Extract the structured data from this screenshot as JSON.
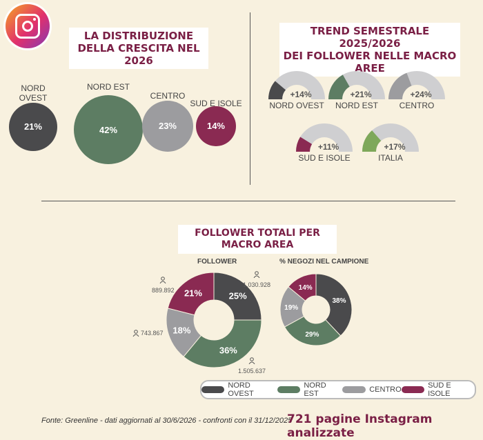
{
  "logo": {
    "icon": "instagram-icon"
  },
  "section1": {
    "title_line1": "LA DISTRIBUZIONE",
    "title_line2": "DELLA CRESCITA NEL 2026"
  },
  "section2": {
    "title_line1": "TREND SEMESTRALE 2025/2026",
    "title_line2": "DEI FOLLOWER NELLE MACRO AREE"
  },
  "section3": {
    "title": "FOLLOWER TOTALI PER MACRO AREA",
    "follower_label": "FOLLOWER",
    "negozi_label": "% NEGOZI NEL CAMPIONE",
    "counts": {
      "nord_ovest": "1.030.928",
      "nord_est": "1.505.637",
      "centro": "743.867",
      "sud_isole": "889.892"
    }
  },
  "legend": [
    {
      "label": "NORD OVEST",
      "color": "#4a4a4c"
    },
    {
      "label": "NORD EST",
      "color": "#5d7d63"
    },
    {
      "label": "CENTRO",
      "color": "#9c9c9f"
    },
    {
      "label": "SUD E ISOLE",
      "color": "#8a2a52"
    }
  ],
  "footer": {
    "note": "Fonte: Greenline - dati aggiornati al 30/6/2026 - confronti con il 31/12/2025",
    "headline": "721 pagine Instagram analizzate"
  },
  "chart_data": [
    {
      "type": "bubble",
      "title": "LA DISTRIBUZIONE DELLA CRESCITA NEL 2026",
      "categories": [
        "NORD OVEST",
        "NORD EST",
        "CENTRO",
        "SUD E ISOLE"
      ],
      "area_labels": [
        "NORD\nOVEST",
        "NORD EST",
        "CENTRO",
        "SUD E ISOLE"
      ],
      "values": [
        21,
        42,
        23,
        14
      ],
      "value_labels": [
        "21%",
        "42%",
        "23%",
        "14%"
      ],
      "colors": [
        "#4a4a4c",
        "#5d7d63",
        "#9c9c9f",
        "#8a2a52"
      ]
    },
    {
      "type": "gauge",
      "title": "TREND SEMESTRALE 2025/2026 DEI FOLLOWER NELLE MACRO AREE",
      "categories": [
        "NORD OVEST",
        "NORD EST",
        "CENTRO",
        "SUD E ISOLE",
        "ITALIA"
      ],
      "values": [
        14,
        21,
        24,
        11,
        17
      ],
      "value_labels": [
        "+14%",
        "+21%",
        "+24%",
        "+11%",
        "+17%"
      ],
      "colors": [
        "#4a4a4c",
        "#5d7d63",
        "#9c9c9f",
        "#8a2a52",
        "#7ea85a"
      ],
      "track_color": "#cfcfd1"
    },
    {
      "type": "pie",
      "subtitle": "FOLLOWER",
      "categories": [
        "NORD OVEST",
        "NORD EST",
        "CENTRO",
        "SUD E ISOLE"
      ],
      "values": [
        25,
        36,
        18,
        21
      ],
      "value_labels": [
        "25%",
        "36%",
        "18%",
        "21%"
      ],
      "colors": [
        "#4a4a4c",
        "#5d7d63",
        "#9c9c9f",
        "#8a2a52"
      ]
    },
    {
      "type": "pie",
      "subtitle": "% NEGOZI NEL CAMPIONE",
      "categories": [
        "NORD OVEST",
        "NORD EST",
        "CENTRO",
        "SUD E ISOLE"
      ],
      "values": [
        38,
        29,
        19,
        14
      ],
      "value_labels": [
        "38%",
        "29%",
        "19%",
        "14%"
      ],
      "colors": [
        "#4a4a4c",
        "#5d7d63",
        "#9c9c9f",
        "#8a2a52"
      ]
    }
  ]
}
